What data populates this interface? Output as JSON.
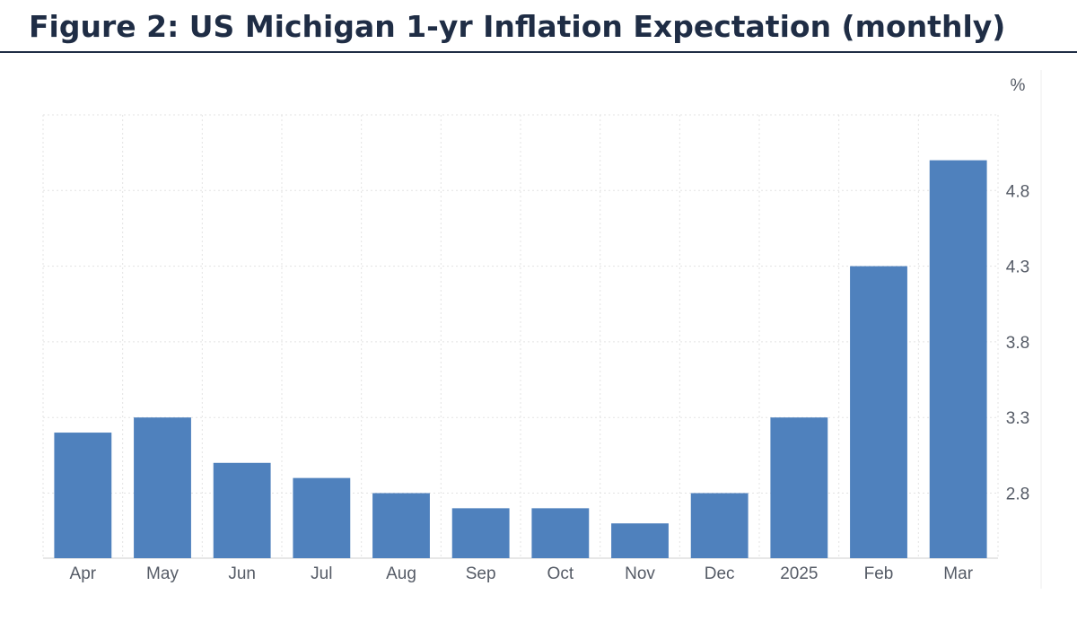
{
  "title": "Figure 2: US Michigan 1-yr Inflation Expectation (monthly)",
  "chart_data": {
    "type": "bar",
    "title": "Figure 2: US Michigan 1-yr Inflation Expectation (monthly)",
    "xlabel": "",
    "ylabel": "%",
    "ylim": [
      2.37,
      5.3
    ],
    "yticks": [
      "2.8",
      "3.3",
      "3.8",
      "4.3",
      "4.8"
    ],
    "grid": true,
    "categories": [
      "Apr",
      "May",
      "Jun",
      "Jul",
      "Aug",
      "Sep",
      "Oct",
      "Nov",
      "Dec",
      "2025",
      "Feb",
      "Mar"
    ],
    "values": [
      3.2,
      3.3,
      3.0,
      2.9,
      2.8,
      2.7,
      2.7,
      2.6,
      2.8,
      3.3,
      4.3,
      5.0
    ],
    "bar_color": "#4f81bd"
  }
}
